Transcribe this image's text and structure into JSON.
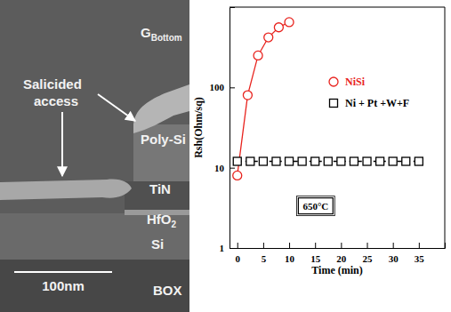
{
  "micrograph": {
    "gate_label": {
      "text": "G",
      "subscript": "Bottom"
    },
    "access_label": [
      "Salicided",
      "access"
    ],
    "layers": [
      "Poly-Si",
      "TiN",
      {
        "text": "HfO",
        "subscript": "2"
      },
      "Si",
      "BOX"
    ],
    "scale_bar": "100nm"
  },
  "chart_data": {
    "type": "line",
    "xlabel": "Time (min)",
    "ylabel": "Rsh(Ohm/sq)",
    "annotation": "650°C",
    "log": "y",
    "grid": false,
    "legend": "top-right",
    "xlim": [
      -1.5,
      40
    ],
    "xticks": [
      0,
      5,
      10,
      15,
      20,
      25,
      30,
      35
    ],
    "ylim": [
      1,
      1000
    ],
    "yticks": [
      1,
      10,
      100
    ],
    "series": [
      {
        "name": "NiSi",
        "color": "#e8231e",
        "marker": "circle",
        "line_style": "solid",
        "x": [
          0,
          2,
          4,
          6,
          8,
          10
        ],
        "values": [
          8,
          80,
          250,
          420,
          560,
          650
        ]
      },
      {
        "name": "Ni + Pt +W+F",
        "color": "#000000",
        "marker": "square",
        "line_style": "dashed",
        "x": [
          0,
          2.5,
          5,
          7.5,
          10,
          12.5,
          15,
          17.5,
          20,
          22.5,
          25,
          27.5,
          30,
          32.5,
          35
        ],
        "values": [
          12,
          12,
          12,
          12,
          12,
          12,
          12,
          12,
          12,
          12,
          12,
          12,
          12,
          12,
          12
        ]
      }
    ]
  }
}
